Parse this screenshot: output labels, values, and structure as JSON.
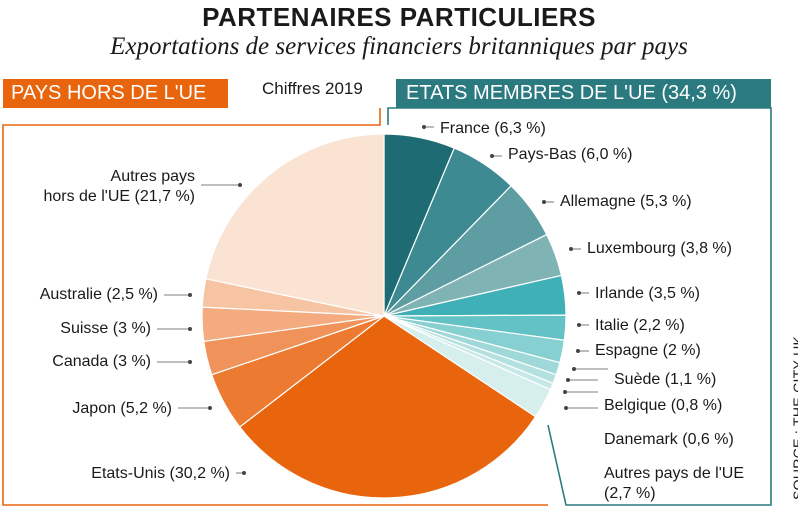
{
  "title": "PARTENAIRES PARTICULIERS",
  "subtitle": "Exportations de services financiers britanniques par pays",
  "year_label": "Chiffres 2019",
  "left_group_label": "PAYS HORS DE L'UE",
  "right_group_label": "ETATS MEMBRES DE L'UE (34,3 %)",
  "source": "SOURCE : THE CITY UK",
  "colors": {
    "non_eu": "#e8650d",
    "eu": "#2a7a80"
  },
  "chart_data": {
    "type": "pie",
    "unit": "%",
    "slices": [
      {
        "name": "France",
        "value": 6.3,
        "group": "EU",
        "color": "#1f6b74",
        "label": "France (6,3 %)"
      },
      {
        "name": "Pays-Bas",
        "value": 6.0,
        "group": "EU",
        "color": "#3d8a93",
        "label": "Pays-Bas (6,0 %)"
      },
      {
        "name": "Allemagne",
        "value": 5.3,
        "group": "EU",
        "color": "#5e9ea2",
        "label": "Allemagne (5,3 %)"
      },
      {
        "name": "Luxembourg",
        "value": 3.8,
        "group": "EU",
        "color": "#7fb3b4",
        "label": "Luxembourg (3,8 %)"
      },
      {
        "name": "Irlande",
        "value": 3.5,
        "group": "EU",
        "color": "#3fb0b7",
        "label": "Irlande (3,5 %)"
      },
      {
        "name": "Italie",
        "value": 2.2,
        "group": "EU",
        "color": "#62c2c6",
        "label": "Italie (2,2 %)"
      },
      {
        "name": "Espagne",
        "value": 2.0,
        "group": "EU",
        "color": "#86d0d1",
        "label": "Espagne (2 %)"
      },
      {
        "name": "Suède",
        "value": 1.1,
        "group": "EU",
        "color": "#9fd8d8",
        "label": "Suède (1,1 %)"
      },
      {
        "name": "Belgique",
        "value": 0.8,
        "group": "EU",
        "color": "#b4e1e0",
        "label": "Belgique (0,8 %)"
      },
      {
        "name": "Danemark",
        "value": 0.6,
        "group": "EU",
        "color": "#c6e8e6",
        "label": "Danemark (0,6 %)"
      },
      {
        "name": "Autres pays de l'UE",
        "value": 2.7,
        "group": "EU",
        "color": "#d6eeec",
        "label": "Autres pays de l'UE (2,7 %)"
      },
      {
        "name": "Etats-Unis",
        "value": 30.2,
        "group": "Non-EU",
        "color": "#e8650d",
        "label": "Etats-Unis (30,2 %)"
      },
      {
        "name": "Japon",
        "value": 5.2,
        "group": "Non-EU",
        "color": "#ec7a30",
        "label": "Japon (5,2 %)"
      },
      {
        "name": "Canada",
        "value": 3.0,
        "group": "Non-EU",
        "color": "#f0935a",
        "label": "Canada (3 %)"
      },
      {
        "name": "Suisse",
        "value": 3.0,
        "group": "Non-EU",
        "color": "#f3ab7f",
        "label": "Suisse (3 %)"
      },
      {
        "name": "Australie",
        "value": 2.5,
        "group": "Non-EU",
        "color": "#f6c3a3",
        "label": "Australie (2,5 %)"
      },
      {
        "name": "Autres pays hors de l'UE",
        "value": 21.7,
        "group": "Non-EU",
        "color": "#fbe3d3",
        "label": "Autres pays hors de l'UE (21,7 %)"
      }
    ]
  }
}
